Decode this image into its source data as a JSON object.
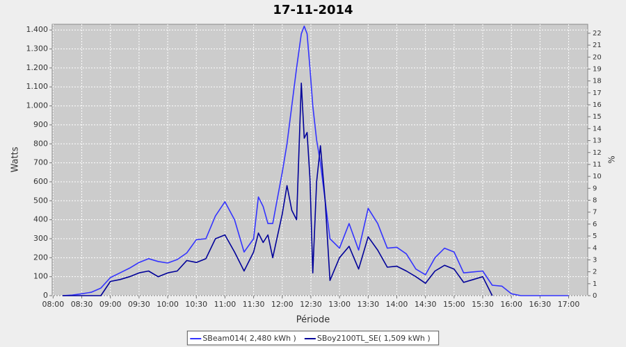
{
  "chart_data": {
    "type": "line",
    "title": "17-11-2014",
    "x_label": "Période",
    "y_label": "Watts",
    "y2_label": "%",
    "x": [
      "08:10",
      "08:20",
      "08:30",
      "08:40",
      "08:50",
      "09:00",
      "09:10",
      "09:20",
      "09:30",
      "09:40",
      "09:50",
      "10:00",
      "10:10",
      "10:20",
      "10:30",
      "10:40",
      "10:50",
      "11:00",
      "11:10",
      "11:20",
      "11:30",
      "11:35",
      "11:40",
      "11:45",
      "11:50",
      "12:00",
      "12:05",
      "12:10",
      "12:15",
      "12:20",
      "12:23",
      "12:26",
      "12:29",
      "12:32",
      "12:36",
      "12:40",
      "12:45",
      "12:50",
      "13:00",
      "13:10",
      "13:20",
      "13:30",
      "13:40",
      "13:50",
      "14:00",
      "14:10",
      "14:20",
      "14:30",
      "14:40",
      "14:50",
      "15:00",
      "15:10",
      "15:20",
      "15:30",
      "15:40",
      "15:50",
      "16:00",
      "16:10",
      "16:20",
      "16:30",
      "16:40",
      "16:50",
      "17:00"
    ],
    "series": [
      {
        "name": "SBeam014( 2,480 kWh )",
        "color": "#3333ff",
        "axis": "y",
        "values": [
          0,
          3,
          10,
          18,
          40,
          95,
          120,
          145,
          175,
          195,
          180,
          172,
          190,
          225,
          295,
          300,
          420,
          495,
          400,
          230,
          300,
          520,
          470,
          380,
          380,
          650,
          800,
          1000,
          1200,
          1380,
          1420,
          1380,
          1200,
          1000,
          820,
          700,
          500,
          300,
          250,
          380,
          240,
          460,
          380,
          250,
          255,
          220,
          140,
          110,
          200,
          250,
          230,
          120,
          125,
          130,
          55,
          50,
          10,
          0,
          0,
          0,
          0,
          0,
          0
        ]
      },
      {
        "name": "SBoy2100TL_SE( 1,509 kWh )",
        "color": "#000099",
        "axis": "y",
        "values": [
          0,
          0,
          0,
          0,
          0,
          75,
          85,
          100,
          120,
          130,
          100,
          120,
          130,
          185,
          175,
          195,
          300,
          320,
          230,
          130,
          230,
          330,
          280,
          320,
          200,
          430,
          580,
          450,
          400,
          1120,
          830,
          860,
          620,
          120,
          600,
          790,
          500,
          80,
          200,
          260,
          140,
          310,
          240,
          150,
          155,
          130,
          100,
          65,
          130,
          160,
          140,
          70,
          85,
          100,
          0,
          null,
          null,
          null,
          null,
          null,
          null,
          null,
          null
        ]
      }
    ],
    "xlim": [
      "07:59",
      "17:20"
    ],
    "xticks": [
      "08:00",
      "08:30",
      "09:00",
      "09:30",
      "10:00",
      "10:30",
      "11:00",
      "11:30",
      "12:00",
      "12:30",
      "13:00",
      "13:30",
      "14:00",
      "14:30",
      "15:00",
      "15:30",
      "16:00",
      "16:30",
      "17:00"
    ],
    "ylim": [
      0,
      1430
    ],
    "yticks": [
      0,
      100,
      200,
      300,
      400,
      500,
      600,
      700,
      800,
      900,
      {
        "value": 1000,
        "label": "1.000"
      },
      {
        "value": 1100,
        "label": "1.100"
      },
      {
        "value": 1200,
        "label": "1.200"
      },
      {
        "value": 1300,
        "label": "1.300"
      },
      {
        "value": 1400,
        "label": "1.400"
      }
    ],
    "y2lim": [
      0,
      22.75
    ],
    "y2ticks": [
      0,
      1,
      2,
      3,
      4,
      5,
      6,
      7,
      8,
      9,
      10,
      11,
      12,
      13,
      14,
      15,
      16,
      17,
      18,
      19,
      20,
      21,
      22
    ],
    "grid": true,
    "legend": "bottom",
    "plot_background": "#cccccc"
  }
}
